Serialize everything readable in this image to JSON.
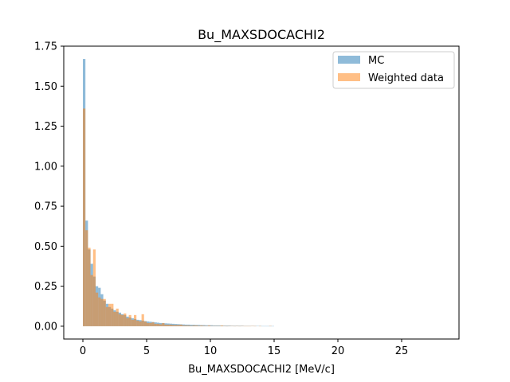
{
  "chart_data": {
    "type": "bar",
    "title": "Bu_MAXSDOCACHI2",
    "xlabel": "Bu_MAXSDOCACHI2 [MeV/c]",
    "ylabel": "",
    "xlim": [
      -1.5,
      29.5
    ],
    "ylim": [
      -0.08,
      1.75
    ],
    "xticks": [
      "0",
      "5",
      "10",
      "15",
      "20",
      "25"
    ],
    "xtick_values": [
      0,
      5,
      10,
      15,
      20,
      25
    ],
    "yticks": [
      "0.00",
      "0.25",
      "0.50",
      "0.75",
      "1.00",
      "1.25",
      "1.50",
      "1.75"
    ],
    "ytick_values": [
      0,
      0.25,
      0.5,
      0.75,
      1.0,
      1.25,
      1.5,
      1.75
    ],
    "bin_width": 0.2,
    "legend_position": "top-right",
    "series": [
      {
        "name": "MC",
        "color": "#1f77b4",
        "opacity": 0.5,
        "bins_start": 0,
        "values": [
          1.67,
          0.66,
          0.48,
          0.39,
          0.31,
          0.25,
          0.24,
          0.2,
          0.16,
          0.14,
          0.12,
          0.11,
          0.1,
          0.09,
          0.085,
          0.075,
          0.07,
          0.06,
          0.055,
          0.05,
          0.045,
          0.04,
          0.038,
          0.035,
          0.032,
          0.03,
          0.028,
          0.026,
          0.024,
          0.022,
          0.02,
          0.019,
          0.018,
          0.017,
          0.016,
          0.015,
          0.014,
          0.013,
          0.012,
          0.011,
          0.01,
          0.01,
          0.009,
          0.009,
          0.008,
          0.008,
          0.007,
          0.007,
          0.006,
          0.006,
          0.006,
          0.005,
          0.005,
          0.005,
          0.004,
          0.004,
          0.004,
          0.004,
          0.003,
          0.003,
          0.003,
          0.003,
          0.003,
          0.002,
          0.002,
          0.002,
          0.002,
          0.002,
          0.002,
          0.002,
          0.001,
          0.001,
          0.001,
          0.001,
          0.001
        ]
      },
      {
        "name": "Weighted data",
        "color": "#ff7f0e",
        "opacity": 0.5,
        "bins_start": 0,
        "values": [
          1.36,
          0.6,
          0.49,
          0.32,
          0.48,
          0.21,
          0.18,
          0.17,
          0.17,
          0.12,
          0.14,
          0.14,
          0.09,
          0.11,
          0.075,
          0.07,
          0.08,
          0.05,
          0.07,
          0.04,
          0.07,
          0.035,
          0.03,
          0.075,
          0.03,
          0.02,
          0.02,
          0.025,
          0.015,
          0.015,
          0.012,
          0.02,
          0.01,
          0.01,
          0.01,
          0.008,
          0.008,
          0.008,
          0.01,
          0.005,
          0.005,
          0.005,
          0.003,
          0.005,
          0.005,
          0.003,
          0.005,
          0.003,
          0.002,
          0.005,
          0.002,
          0.002,
          0.002,
          0.002,
          0.005,
          0.002,
          0.001,
          0.002,
          0.002,
          0.001,
          0.002,
          0.001,
          0.002,
          0.001,
          0.001,
          0.001,
          0.002,
          0.001,
          0.0,
          0.001,
          0.0,
          0.0,
          0.0,
          0.002,
          0.0
        ]
      }
    ]
  }
}
